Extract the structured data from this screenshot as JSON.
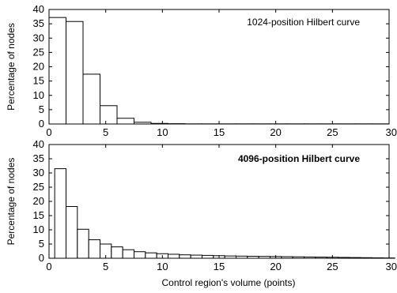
{
  "chart_data": [
    {
      "type": "bar",
      "annotation": "1024-position Hilbert curve",
      "xlabel": "",
      "ylabel": "Percentage of nodes",
      "xlim": [
        0,
        30
      ],
      "ylim": [
        0,
        40
      ],
      "xticks": [
        0,
        5,
        10,
        15,
        20,
        25,
        30
      ],
      "yticks": [
        0,
        5,
        10,
        15,
        20,
        25,
        30,
        35,
        40
      ],
      "grid": false,
      "bin_width": 1.5,
      "x": [
        0.75,
        2.25,
        3.75,
        5.25,
        6.75,
        8.25,
        9.75,
        11.25,
        12.75,
        14.25,
        15.75,
        17.25,
        18.75,
        20.25,
        21.75,
        23.25,
        24.75,
        26.25,
        27.75,
        29.25
      ],
      "values": [
        37.2,
        35.8,
        17.4,
        6.4,
        2.0,
        0.6,
        0.2,
        0.1,
        0.05,
        0.05,
        0.05,
        0.05,
        0.05,
        0.05,
        0.05,
        0.05,
        0.05,
        0.05,
        0.05,
        0.05
      ]
    },
    {
      "type": "bar",
      "annotation": "4096-position Hilbert curve",
      "xlabel": "Control region's volume (points)",
      "ylabel": "Percentage of nodes",
      "xlim": [
        0,
        30
      ],
      "ylim": [
        0,
        40
      ],
      "xticks": [
        0,
        5,
        10,
        15,
        20,
        25,
        30
      ],
      "yticks": [
        0,
        5,
        10,
        15,
        20,
        25,
        30,
        35,
        40
      ],
      "grid": false,
      "bin_width": 1.0,
      "x": [
        1,
        2,
        3,
        4,
        5,
        6,
        7,
        8,
        9,
        10,
        11,
        12,
        13,
        14,
        15,
        16,
        17,
        18,
        19,
        20,
        21,
        22,
        23,
        24,
        25,
        26,
        27,
        28,
        29,
        30
      ],
      "values": [
        31.5,
        18.2,
        10.2,
        6.5,
        5.0,
        4.0,
        3.0,
        2.3,
        1.9,
        1.6,
        1.4,
        1.2,
        1.1,
        1.0,
        0.9,
        0.8,
        0.75,
        0.7,
        0.65,
        0.6,
        0.55,
        0.5,
        0.45,
        0.4,
        0.35,
        0.3,
        0.25,
        0.2,
        0.15,
        0.1
      ]
    }
  ]
}
